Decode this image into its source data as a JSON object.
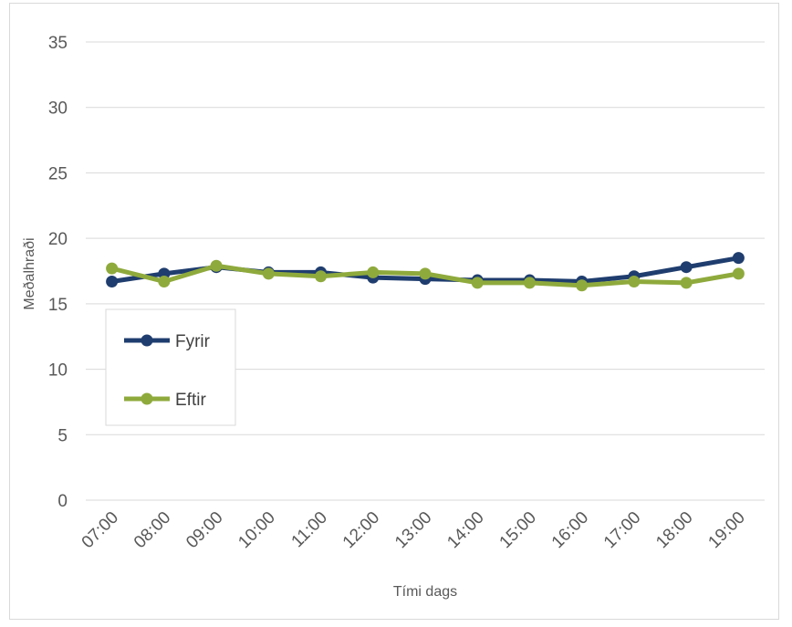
{
  "chart_data": {
    "type": "line",
    "xlabel": "Tími dags",
    "ylabel": "Meðalhraði",
    "categories": [
      "07:00",
      "08:00",
      "09:00",
      "10:00",
      "11:00",
      "12:00",
      "13:00",
      "14:00",
      "15:00",
      "16:00",
      "17:00",
      "18:00",
      "19:00"
    ],
    "ylim": [
      0,
      35
    ],
    "yticks": [
      0,
      5,
      10,
      15,
      20,
      25,
      30,
      35
    ],
    "grid": true,
    "legend_position": "left",
    "series": [
      {
        "name": "Fyrir",
        "color": "#1f3d6e",
        "values": [
          16.7,
          17.3,
          17.8,
          17.4,
          17.4,
          17.0,
          16.9,
          16.8,
          16.8,
          16.7,
          17.1,
          17.8,
          18.5
        ]
      },
      {
        "name": "Eftir",
        "color": "#8faa3c",
        "values": [
          17.7,
          16.7,
          17.9,
          17.3,
          17.1,
          17.4,
          17.3,
          16.6,
          16.6,
          16.4,
          16.7,
          16.6,
          17.3
        ]
      }
    ]
  }
}
